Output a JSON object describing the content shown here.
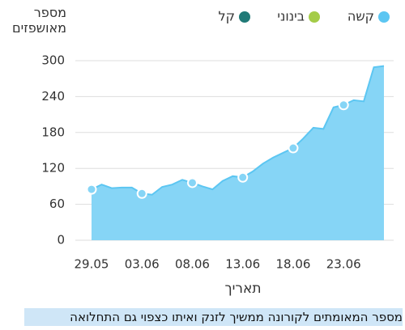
{
  "chart_data": {
    "type": "area",
    "y_label": "מספר מאושפזים",
    "x_label": "תאריך",
    "caption": "מספר המאומתים לקורונה ממשיך לזנק ואיתו כצפוי גם התחלואה",
    "categories": [
      "29.05",
      null,
      null,
      null,
      null,
      "03.06",
      null,
      null,
      null,
      null,
      "08.06",
      null,
      null,
      null,
      null,
      "13.06",
      null,
      null,
      null,
      null,
      "18.06",
      null,
      null,
      null,
      null,
      "23.06",
      null,
      null,
      null,
      null
    ],
    "series": [
      {
        "name": "קשה",
        "color": "#5cc6f2",
        "values": [
          85,
          93,
          87,
          88,
          88,
          78,
          76,
          89,
          93,
          101,
          96,
          90,
          85,
          99,
          107,
          105,
          115,
          128,
          138,
          146,
          154,
          170,
          188,
          186,
          222,
          226,
          234,
          232,
          289,
          291
        ]
      },
      {
        "name": "בינוני",
        "color": "#a4cc48"
      },
      {
        "name": "קל",
        "color": "#217a77"
      }
    ],
    "ylim": [
      0,
      300
    ],
    "yticks": [
      0,
      60,
      120,
      180,
      240,
      300
    ],
    "grid": true
  }
}
